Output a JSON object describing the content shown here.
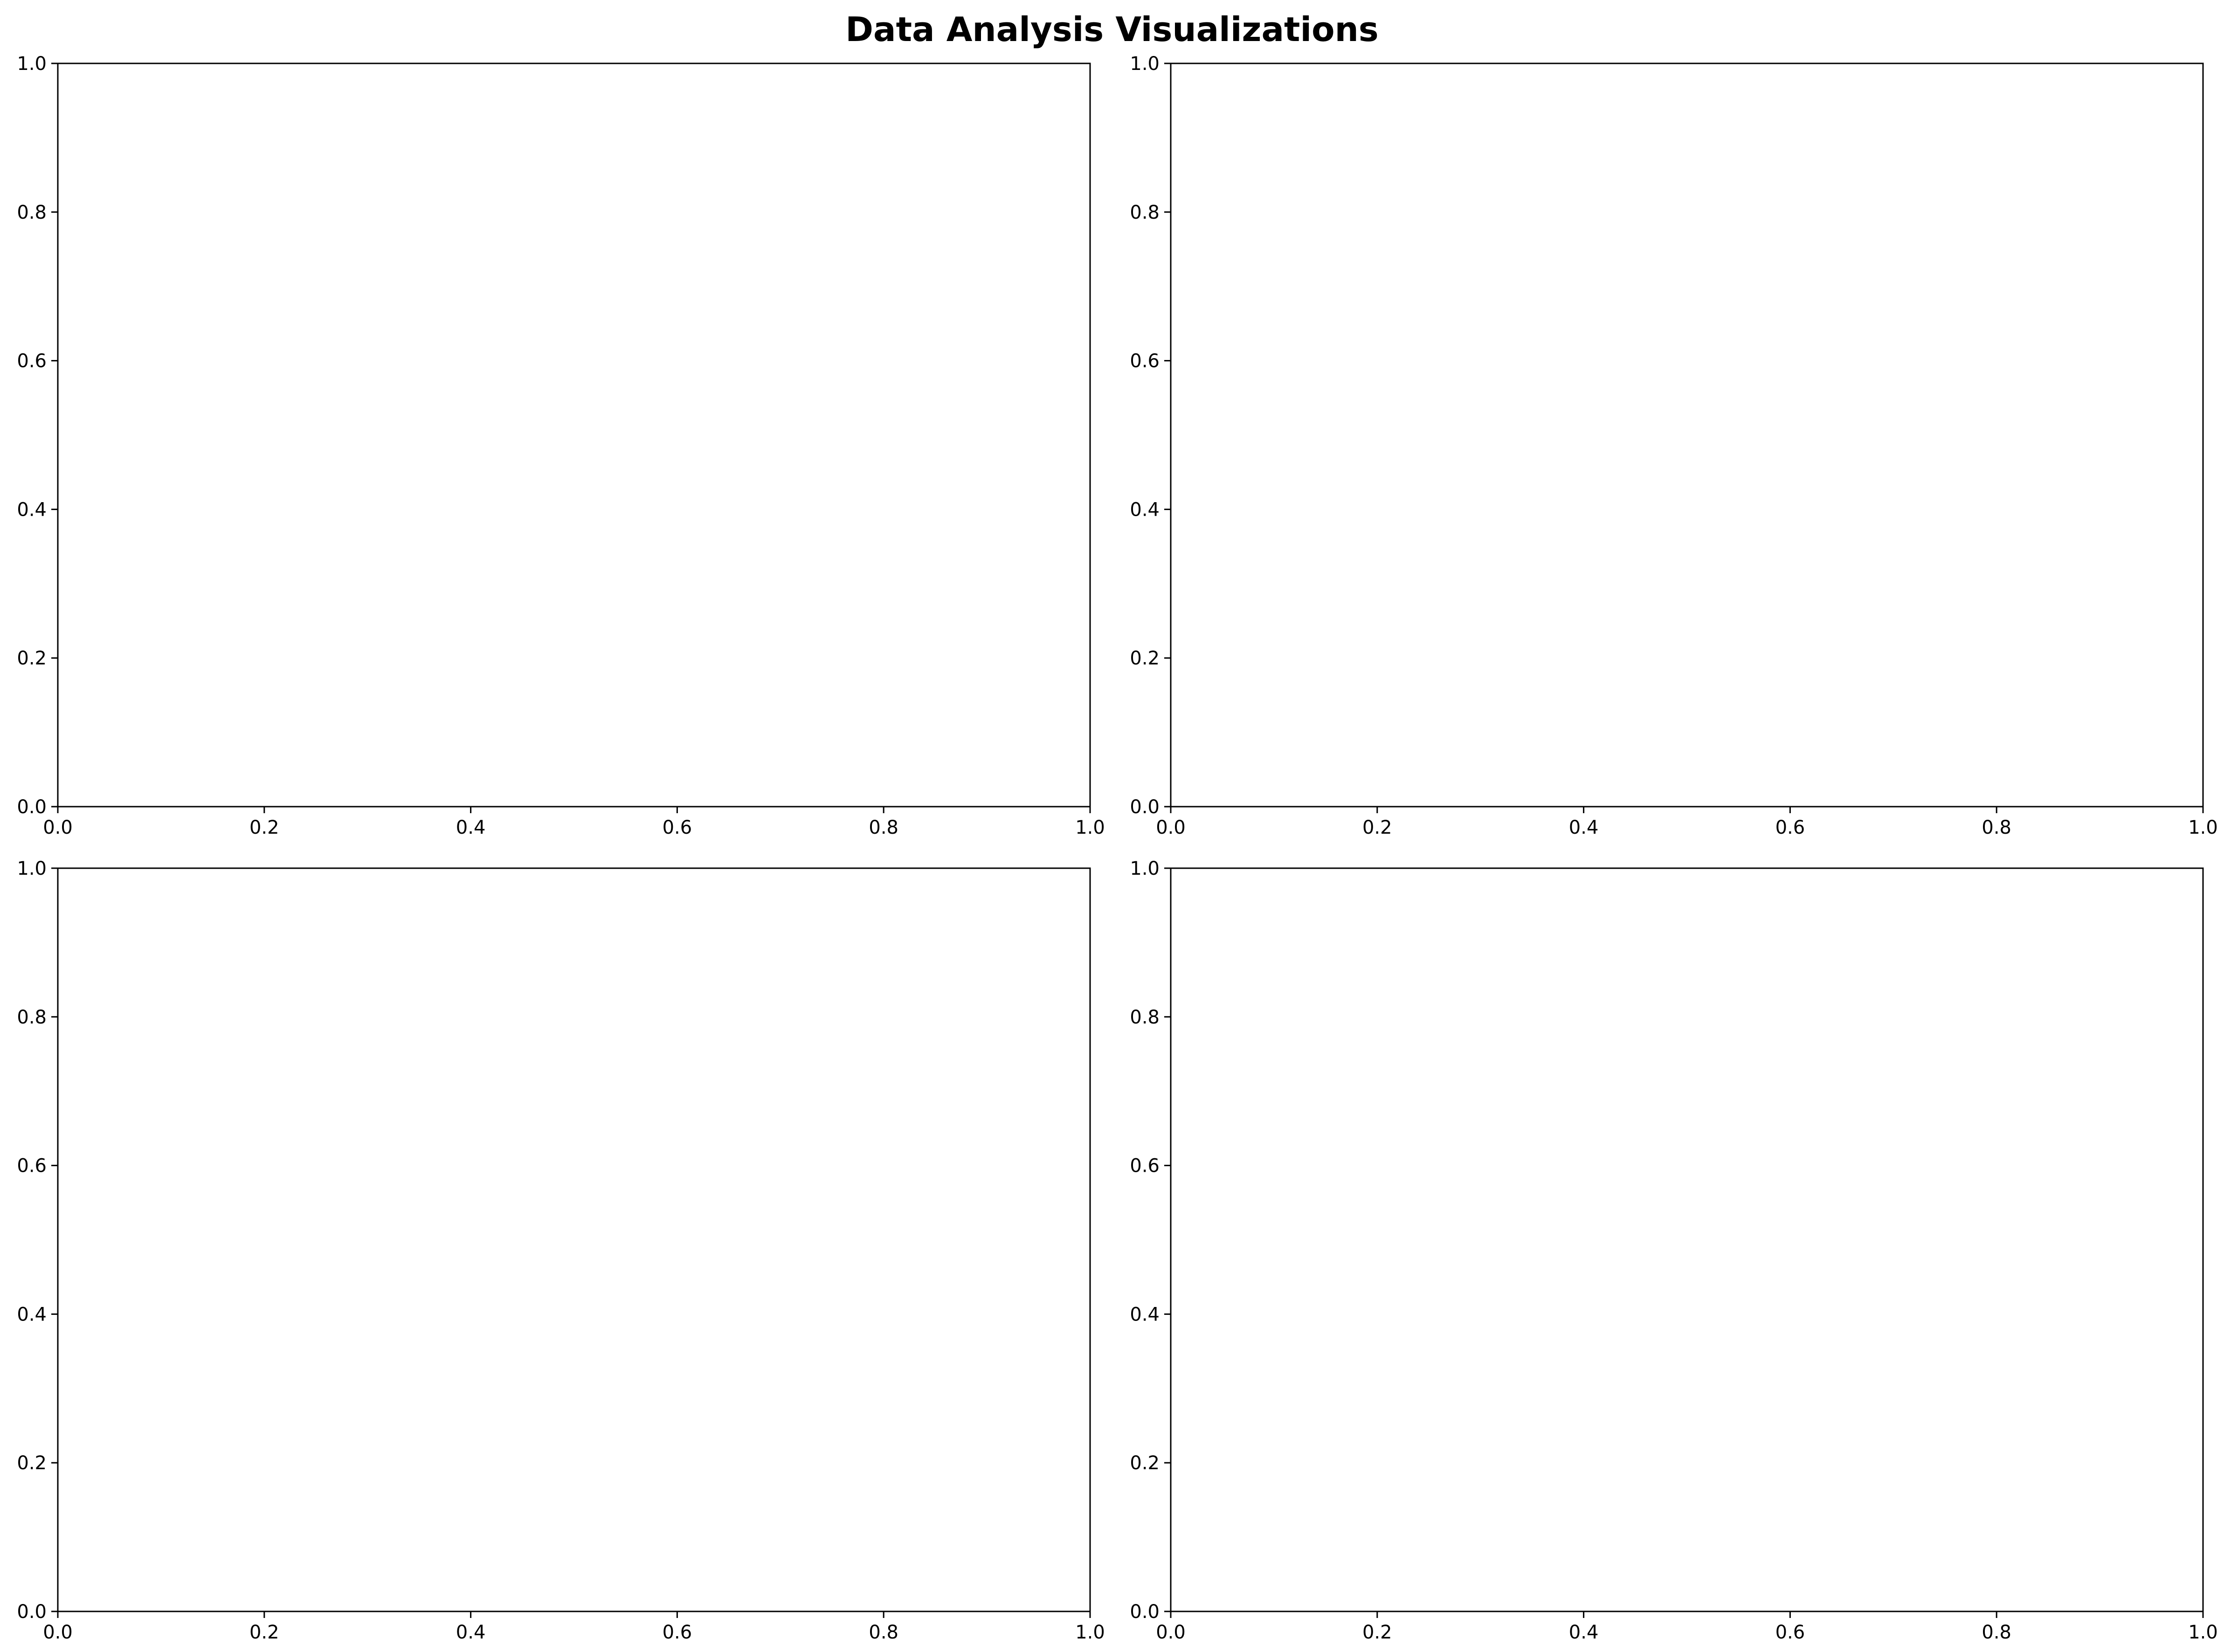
{
  "figure": {
    "title": "Data Analysis Visualizations",
    "background": "#ffffff",
    "title_color": "#000000"
  },
  "chart_data": [
    {
      "type": "line",
      "title": "",
      "xlabel": "",
      "ylabel": "",
      "xlim": [
        0.0,
        1.0
      ],
      "ylim": [
        0.0,
        1.0
      ],
      "xticks": [
        0.0,
        0.2,
        0.4,
        0.6,
        0.8,
        1.0
      ],
      "yticks": [
        0.0,
        0.2,
        0.4,
        0.6,
        0.8,
        1.0
      ],
      "xtick_labels": [
        "0.0",
        "0.2",
        "0.4",
        "0.6",
        "0.8",
        "1.0"
      ],
      "ytick_labels": [
        "0.0",
        "0.2",
        "0.4",
        "0.6",
        "0.8",
        "1.0"
      ],
      "grid": false,
      "series": []
    },
    {
      "type": "line",
      "title": "",
      "xlabel": "",
      "ylabel": "",
      "xlim": [
        0.0,
        1.0
      ],
      "ylim": [
        0.0,
        1.0
      ],
      "xticks": [
        0.0,
        0.2,
        0.4,
        0.6,
        0.8,
        1.0
      ],
      "yticks": [
        0.0,
        0.2,
        0.4,
        0.6,
        0.8,
        1.0
      ],
      "xtick_labels": [
        "0.0",
        "0.2",
        "0.4",
        "0.6",
        "0.8",
        "1.0"
      ],
      "ytick_labels": [
        "0.0",
        "0.2",
        "0.4",
        "0.6",
        "0.8",
        "1.0"
      ],
      "grid": false,
      "series": []
    },
    {
      "type": "line",
      "title": "",
      "xlabel": "",
      "ylabel": "",
      "xlim": [
        0.0,
        1.0
      ],
      "ylim": [
        0.0,
        1.0
      ],
      "xticks": [
        0.0,
        0.2,
        0.4,
        0.6,
        0.8,
        1.0
      ],
      "yticks": [
        0.0,
        0.2,
        0.4,
        0.6,
        0.8,
        1.0
      ],
      "xtick_labels": [
        "0.0",
        "0.2",
        "0.4",
        "0.6",
        "0.8",
        "1.0"
      ],
      "ytick_labels": [
        "0.0",
        "0.2",
        "0.4",
        "0.6",
        "0.8",
        "1.0"
      ],
      "grid": false,
      "series": []
    },
    {
      "type": "line",
      "title": "",
      "xlabel": "",
      "ylabel": "",
      "xlim": [
        0.0,
        1.0
      ],
      "ylim": [
        0.0,
        1.0
      ],
      "xticks": [
        0.0,
        0.2,
        0.4,
        0.6,
        0.8,
        1.0
      ],
      "yticks": [
        0.0,
        0.2,
        0.4,
        0.6,
        0.8,
        1.0
      ],
      "xtick_labels": [
        "0.0",
        "0.2",
        "0.4",
        "0.6",
        "0.8",
        "1.0"
      ],
      "ytick_labels": [
        "0.0",
        "0.2",
        "0.4",
        "0.6",
        "0.8",
        "1.0"
      ],
      "grid": false,
      "series": []
    }
  ]
}
